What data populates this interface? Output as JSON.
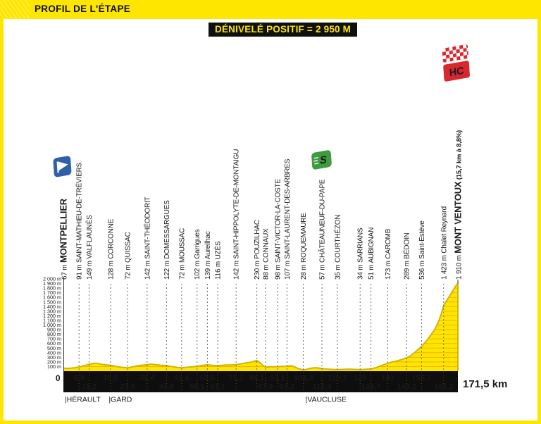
{
  "header": {
    "title": "PROFIL DE L'ÉTAPE"
  },
  "banner": {
    "text": "DÉNIVELÉ POSITIF = 2 950 M"
  },
  "axis": {
    "origin_label": "0",
    "finish_label": "171,5 km"
  },
  "departments": [
    {
      "label": "|HÉRAULT",
      "km": 0.6
    },
    {
      "label": "|GARD",
      "km": 19.7
    },
    {
      "label": "|VAUCLUSE",
      "km": 105.2
    }
  ],
  "icons": {
    "start_flag": "start-flag",
    "sprint_label": "S",
    "hc_label": "HC"
  },
  "colors": {
    "accent_yellow": "#FFE600",
    "strip_black": "#0E0E0E",
    "profile_fill": "#FFE600",
    "profile_edge": "#D4B400",
    "grid_stripe": "#F0A500",
    "hc_red": "#D7282F",
    "sprint_green": "#3E9B3E",
    "flag_blue": "#2E5FA8",
    "dash_gray": "#6A6A6A"
  },
  "chart_data": {
    "type": "area",
    "title": "Profil de l'étape — Montpellier → Mont Ventoux",
    "x_unit": "km",
    "y_unit": "m",
    "xlim": [
      0,
      171.5
    ],
    "ylim": [
      0,
      2000
    ],
    "grid": "horizontal 100 m stripes inside profile only",
    "y_tick_labels": [
      "100 m",
      "200 m",
      "300 m",
      "400 m",
      "500 m",
      "600 m",
      "700 m",
      "800 m",
      "900 m",
      "1 000 m",
      "1 100 m",
      "1 200 m",
      "1 300 m",
      "1 400 m",
      "1 500 m",
      "1 600 m",
      "1 700 m",
      "1 800 m",
      "1 900 m",
      "2 000 m"
    ],
    "waypoints": [
      {
        "km": 0,
        "elev": 67,
        "elev_label": "67 m",
        "name": "MONTPELLIER",
        "bold": true,
        "km_label": null,
        "row": null,
        "icon": "start"
      },
      {
        "km": 6.8,
        "elev": 91,
        "elev_label": "91 m",
        "name": "SAINT-MATHIEU-DE-TRÉVIERS",
        "km_label": "6,8",
        "row": "top"
      },
      {
        "km": 11.2,
        "elev": 149,
        "elev_label": "149 m",
        "name": "VALFLAUNÈS",
        "km_label": "11,2",
        "row": "bottom"
      },
      {
        "km": 20.5,
        "elev": 128,
        "elev_label": "128 m",
        "name": "CORCONNE",
        "km_label": "20,5",
        "row": "top"
      },
      {
        "km": 27.9,
        "elev": 72,
        "elev_label": "72 m",
        "name": "QUISSAC",
        "km_label": "27,9",
        "row": "bottom"
      },
      {
        "km": 36.4,
        "elev": 142,
        "elev_label": "142 m",
        "name": "SAINT-THÉODORIT",
        "km_label": "36,4",
        "row": "top"
      },
      {
        "km": 44.8,
        "elev": 122,
        "elev_label": "122 m",
        "name": "DOMESSARGUES",
        "km_label": "44,8",
        "row": "bottom"
      },
      {
        "km": 51.4,
        "elev": 72,
        "elev_label": "72 m",
        "name": "MOUSSAC",
        "km_label": "51,4",
        "row": "top"
      },
      {
        "km": 58.1,
        "elev": 102,
        "elev_label": "102 m",
        "name": "Garrigues",
        "km_label": "58,1",
        "row": "bottom"
      },
      {
        "km": 62.6,
        "elev": 139,
        "elev_label": "139 m",
        "name": "Aureilhac",
        "km_label": "62,6",
        "row": "top"
      },
      {
        "km": 67.1,
        "elev": 116,
        "elev_label": "116 m",
        "name": "UZÈS",
        "km_label": "67,1",
        "row": "bottom"
      },
      {
        "km": 75.1,
        "elev": 142,
        "elev_label": "142 m",
        "name": "SAINT-HIPPOLYTE-DE-MONTAIGU",
        "km_label": "75,1",
        "row": "top"
      },
      {
        "km": 84.1,
        "elev": 230,
        "elev_label": "230 m",
        "name": "POUZILHAC",
        "km_label": "84,1",
        "row": "top"
      },
      {
        "km": 87.9,
        "elev": 88,
        "elev_label": "88 m",
        "name": "CONNAUX",
        "km_label": "87,9",
        "row": "bottom"
      },
      {
        "km": 93.1,
        "elev": 98,
        "elev_label": "98 m",
        "name": "SAINT-VICTOR-LA-COSTE",
        "km_label": "93,1",
        "row": "top"
      },
      {
        "km": 97.2,
        "elev": 107,
        "elev_label": "107 m",
        "name": "SAINT-LAURENT-DES-ARBRES",
        "km_label": "97,2",
        "row": "bottom"
      },
      {
        "km": 104.3,
        "elev": 28,
        "elev_label": "28 m",
        "name": "ROQUEMAURE",
        "km_label": "104,3",
        "row": "top"
      },
      {
        "km": 112.4,
        "elev": 57,
        "elev_label": "57 m",
        "name": "CHÂTEAUNEUF-DU-PAPE",
        "km_label": "112,4",
        "row": "bottom",
        "icon": "sprint"
      },
      {
        "km": 119.1,
        "elev": 35,
        "elev_label": "35 m",
        "name": "COURTHÉZON",
        "km_label": "119,1",
        "row": "top"
      },
      {
        "km": 129,
        "elev": 34,
        "elev_label": "34 m",
        "name": "SARRIANS",
        "km_label": "129",
        "row": "top"
      },
      {
        "km": 133.7,
        "elev": 51,
        "elev_label": "51 m",
        "name": "AUBIGNAN",
        "km_label": "133,7",
        "row": "bottom"
      },
      {
        "km": 141,
        "elev": 173,
        "elev_label": "173 m",
        "name": "CAROMB",
        "km_label": "141",
        "row": "top"
      },
      {
        "km": 149.2,
        "elev": 289,
        "elev_label": "289 m",
        "name": "BÉDOIN",
        "km_label": "149,2",
        "row": "bottom"
      },
      {
        "km": 155.7,
        "elev": 536,
        "elev_label": "536 m",
        "name": "Saint-Estève",
        "km_label": "155,7",
        "row": "top"
      },
      {
        "km": 165.3,
        "elev": 1423,
        "elev_label": "1 423 m",
        "name": "Chalet Reynard",
        "km_label": "165,3",
        "row": "bottom"
      },
      {
        "km": 171.5,
        "elev": 1910,
        "elev_label": "1 910 m",
        "name": "MONT VENTOUX",
        "bold": true,
        "suffix": "(15,7 km à 8,8%)",
        "km_label": null,
        "row": null,
        "icon": "hc"
      }
    ],
    "profile": [
      [
        0,
        67
      ],
      [
        1.5,
        60
      ],
      [
        3,
        64
      ],
      [
        5,
        75
      ],
      [
        6.8,
        91
      ],
      [
        9,
        118
      ],
      [
        11.2,
        149
      ],
      [
        13,
        168
      ],
      [
        14.5,
        172
      ],
      [
        16,
        155
      ],
      [
        18,
        138
      ],
      [
        20.5,
        128
      ],
      [
        22.5,
        105
      ],
      [
        25,
        85
      ],
      [
        27.9,
        72
      ],
      [
        30,
        95
      ],
      [
        33,
        122
      ],
      [
        36.4,
        142
      ],
      [
        38,
        152
      ],
      [
        40,
        140
      ],
      [
        42.5,
        128
      ],
      [
        44.8,
        122
      ],
      [
        47,
        102
      ],
      [
        49.5,
        82
      ],
      [
        51.4,
        72
      ],
      [
        54,
        86
      ],
      [
        56,
        95
      ],
      [
        58.1,
        102
      ],
      [
        60,
        122
      ],
      [
        62.6,
        139
      ],
      [
        64.5,
        128
      ],
      [
        67.1,
        116
      ],
      [
        69,
        128
      ],
      [
        71,
        133
      ],
      [
        73,
        136
      ],
      [
        75.1,
        142
      ],
      [
        77,
        158
      ],
      [
        79,
        175
      ],
      [
        81.5,
        196
      ],
      [
        84.1,
        230
      ],
      [
        85.5,
        185
      ],
      [
        86.8,
        120
      ],
      [
        87.9,
        88
      ],
      [
        90,
        94
      ],
      [
        93.1,
        98
      ],
      [
        95,
        102
      ],
      [
        97.2,
        107
      ],
      [
        99,
        118
      ],
      [
        100.5,
        95
      ],
      [
        102,
        60
      ],
      [
        104.3,
        28
      ],
      [
        106,
        42
      ],
      [
        108,
        68
      ],
      [
        110,
        75
      ],
      [
        112.4,
        57
      ],
      [
        114.5,
        46
      ],
      [
        117,
        38
      ],
      [
        119.1,
        35
      ],
      [
        121,
        38
      ],
      [
        124,
        44
      ],
      [
        126.5,
        40
      ],
      [
        129,
        34
      ],
      [
        131,
        40
      ],
      [
        133.7,
        51
      ],
      [
        135.5,
        70
      ],
      [
        137.5,
        105
      ],
      [
        139,
        135
      ],
      [
        141,
        173
      ],
      [
        143,
        200
      ],
      [
        145,
        222
      ],
      [
        147,
        250
      ],
      [
        149.2,
        289
      ],
      [
        150.5,
        320
      ],
      [
        152,
        375
      ],
      [
        153.8,
        450
      ],
      [
        155.7,
        536
      ],
      [
        157,
        610
      ],
      [
        158.5,
        700
      ],
      [
        160,
        800
      ],
      [
        161.5,
        910
      ],
      [
        163,
        1060
      ],
      [
        164.2,
        1230
      ],
      [
        165.3,
        1423
      ],
      [
        166.5,
        1520
      ],
      [
        168,
        1640
      ],
      [
        169.5,
        1760
      ],
      [
        170.5,
        1840
      ],
      [
        171.5,
        1910
      ]
    ]
  }
}
